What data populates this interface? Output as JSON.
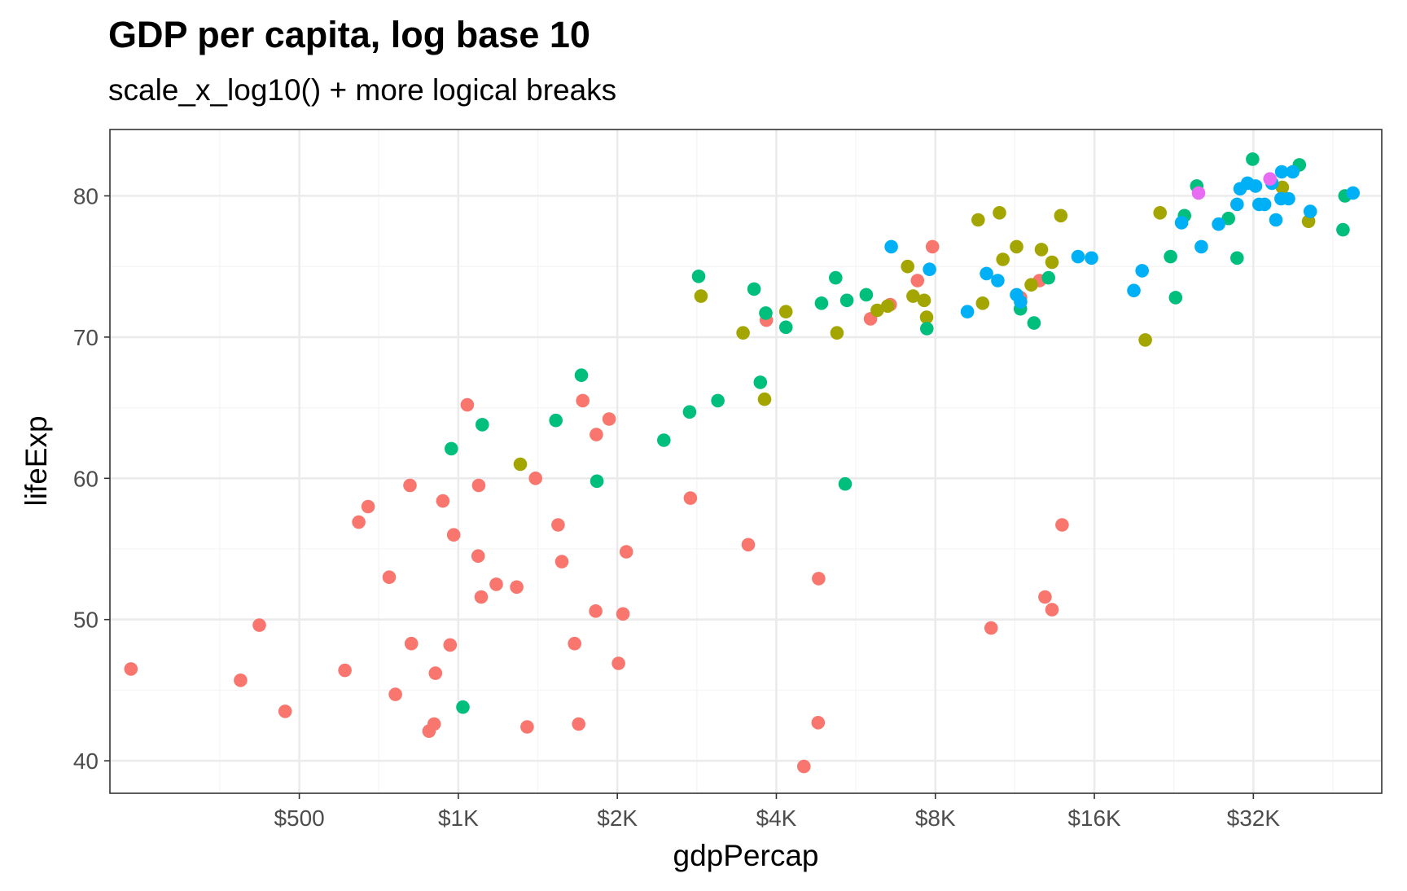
{
  "chart_data": {
    "type": "scatter",
    "title": "GDP per capita, log base 10",
    "subtitle": "scale_x_log10() + more logical breaks",
    "xlabel": "gdpPercap",
    "ylabel": "lifeExp",
    "x_scale": "log10",
    "xlim": [
      219,
      56000
    ],
    "ylim": [
      37.7,
      84.7
    ],
    "x_breaks": [
      500,
      1000,
      2000,
      4000,
      8000,
      16000,
      32000
    ],
    "x_tick_labels": [
      "$500",
      "$1K",
      "$2K",
      "$4K",
      "$8K",
      "$16K",
      "$32K"
    ],
    "y_breaks": [
      40,
      50,
      60,
      70,
      80
    ],
    "y_tick_labels": [
      "40",
      "50",
      "60",
      "70",
      "80"
    ],
    "grid": true,
    "legend": "none",
    "series": [
      {
        "color": "#F8766D",
        "points": [
          [
            240,
            46.5
          ],
          [
            387,
            45.7
          ],
          [
            420,
            49.6
          ],
          [
            470,
            43.5
          ],
          [
            610,
            46.4
          ],
          [
            648,
            56.9
          ],
          [
            675,
            58.0
          ],
          [
            740,
            53.0
          ],
          [
            760,
            44.7
          ],
          [
            810,
            59.5
          ],
          [
            815,
            48.3
          ],
          [
            880,
            42.1
          ],
          [
            900,
            42.6
          ],
          [
            905,
            46.2
          ],
          [
            935,
            58.4
          ],
          [
            965,
            48.2
          ],
          [
            980,
            56.0
          ],
          [
            1040,
            65.2
          ],
          [
            1090,
            54.5
          ],
          [
            1093,
            59.5
          ],
          [
            1105,
            51.6
          ],
          [
            1180,
            52.5
          ],
          [
            1290,
            52.3
          ],
          [
            1350,
            42.4
          ],
          [
            1400,
            60.0
          ],
          [
            1545,
            56.7
          ],
          [
            1570,
            54.1
          ],
          [
            1660,
            48.3
          ],
          [
            1690,
            42.6
          ],
          [
            1720,
            65.5
          ],
          [
            1820,
            50.6
          ],
          [
            1825,
            63.1
          ],
          [
            1930,
            64.2
          ],
          [
            2010,
            46.9
          ],
          [
            2050,
            50.4
          ],
          [
            2080,
            54.8
          ],
          [
            2750,
            58.6
          ],
          [
            3540,
            55.3
          ],
          [
            3830,
            71.2
          ],
          [
            4510,
            39.6
          ],
          [
            4800,
            42.7
          ],
          [
            4810,
            52.9
          ],
          [
            6030,
            71.3
          ],
          [
            6570,
            72.3
          ],
          [
            7400,
            74.0
          ],
          [
            7900,
            76.4
          ],
          [
            10200,
            49.4
          ],
          [
            11600,
            72.8
          ],
          [
            12600,
            74.0
          ],
          [
            12900,
            51.6
          ],
          [
            13300,
            50.7
          ],
          [
            13900,
            56.7
          ]
        ]
      },
      {
        "color": "#A3A500",
        "points": [
          [
            1310,
            61.0
          ],
          [
            2880,
            72.9
          ],
          [
            3460,
            70.3
          ],
          [
            3800,
            65.6
          ],
          [
            4170,
            71.8
          ],
          [
            5210,
            70.3
          ],
          [
            6210,
            71.9
          ],
          [
            6500,
            72.2
          ],
          [
            7090,
            75.0
          ],
          [
            7260,
            72.9
          ],
          [
            7620,
            72.6
          ],
          [
            7700,
            71.4
          ],
          [
            9640,
            78.3
          ],
          [
            9830,
            72.4
          ],
          [
            10580,
            78.8
          ],
          [
            10740,
            75.5
          ],
          [
            11400,
            76.4
          ],
          [
            12150,
            73.7
          ],
          [
            12700,
            76.2
          ],
          [
            13300,
            75.3
          ],
          [
            13820,
            78.6
          ],
          [
            19980,
            69.8
          ],
          [
            21300,
            78.8
          ],
          [
            36300,
            80.6
          ],
          [
            40700,
            78.2
          ]
        ]
      },
      {
        "color": "#00BF7D",
        "points": [
          [
            970,
            62.1
          ],
          [
            1020,
            43.8
          ],
          [
            1110,
            63.8
          ],
          [
            1530,
            64.1
          ],
          [
            1710,
            67.3
          ],
          [
            1830,
            59.8
          ],
          [
            2450,
            62.7
          ],
          [
            2740,
            64.7
          ],
          [
            2850,
            74.3
          ],
          [
            3100,
            65.5
          ],
          [
            3630,
            73.4
          ],
          [
            3730,
            66.8
          ],
          [
            3820,
            71.7
          ],
          [
            4170,
            70.7
          ],
          [
            4870,
            72.4
          ],
          [
            5180,
            74.2
          ],
          [
            5400,
            59.6
          ],
          [
            5440,
            72.6
          ],
          [
            5920,
            73.0
          ],
          [
            7710,
            70.6
          ],
          [
            11590,
            72.0
          ],
          [
            12300,
            71.0
          ],
          [
            13100,
            74.2
          ],
          [
            22300,
            75.7
          ],
          [
            22800,
            72.8
          ],
          [
            23700,
            78.6
          ],
          [
            25000,
            80.7
          ],
          [
            28700,
            78.4
          ],
          [
            29800,
            75.6
          ],
          [
            31900,
            82.6
          ],
          [
            39100,
            82.2
          ],
          [
            47700,
            80.0
          ],
          [
            47300,
            77.6
          ]
        ]
      },
      {
        "color": "#00B0F6",
        "points": [
          [
            6600,
            76.4
          ],
          [
            7800,
            74.8
          ],
          [
            9200,
            71.8
          ],
          [
            10000,
            74.5
          ],
          [
            10500,
            74.0
          ],
          [
            11400,
            73.0
          ],
          [
            11600,
            72.5
          ],
          [
            14900,
            75.7
          ],
          [
            15800,
            75.6
          ],
          [
            19000,
            73.3
          ],
          [
            19700,
            74.7
          ],
          [
            23400,
            78.1
          ],
          [
            25500,
            76.4
          ],
          [
            27500,
            78.0
          ],
          [
            29800,
            79.4
          ],
          [
            30200,
            80.5
          ],
          [
            31200,
            80.9
          ],
          [
            32300,
            80.7
          ],
          [
            32800,
            79.4
          ],
          [
            33600,
            79.4
          ],
          [
            34700,
            80.9
          ],
          [
            35300,
            78.3
          ],
          [
            36100,
            79.8
          ],
          [
            36200,
            81.7
          ],
          [
            37300,
            79.8
          ],
          [
            38000,
            81.7
          ],
          [
            41000,
            78.9
          ],
          [
            49400,
            80.2
          ]
        ]
      },
      {
        "color": "#E76BF3",
        "points": [
          [
            25200,
            80.2
          ],
          [
            34400,
            81.2
          ]
        ]
      }
    ]
  }
}
